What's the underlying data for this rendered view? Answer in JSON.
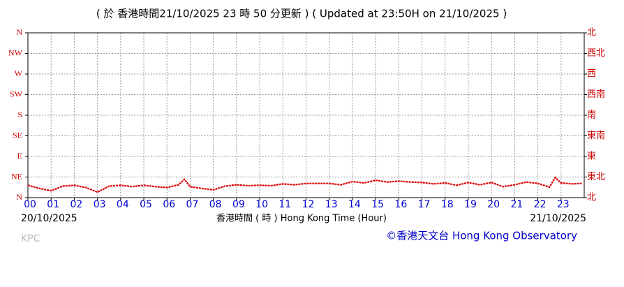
{
  "chart_data": {
    "type": "line",
    "title": "( 於 香港時間21/10/2025 23 時 50 分更新 ) ( Updated at 23:50H on 21/10/2025 )",
    "x_label": "香港時間 ( 時 )  Hong Kong Time (Hour)",
    "start_date": "20/10/2025",
    "end_date": "21/10/2025",
    "station": "KPC",
    "credit": "©香港天文台 Hong Kong Observatory",
    "xlim": [
      0,
      24
    ],
    "xticks": [
      {
        "value": 0,
        "label": "00"
      },
      {
        "value": 1,
        "label": "01"
      },
      {
        "value": 2,
        "label": "02"
      },
      {
        "value": 3,
        "label": "03"
      },
      {
        "value": 4,
        "label": "04"
      },
      {
        "value": 5,
        "label": "05"
      },
      {
        "value": 6,
        "label": "06"
      },
      {
        "value": 7,
        "label": "07"
      },
      {
        "value": 8,
        "label": "08"
      },
      {
        "value": 9,
        "label": "09"
      },
      {
        "value": 10,
        "label": "10"
      },
      {
        "value": 11,
        "label": "11"
      },
      {
        "value": 12,
        "label": "12"
      },
      {
        "value": 13,
        "label": "13"
      },
      {
        "value": 14,
        "label": "14"
      },
      {
        "value": 15,
        "label": "15"
      },
      {
        "value": 16,
        "label": "16"
      },
      {
        "value": 17,
        "label": "17"
      },
      {
        "value": 18,
        "label": "18"
      },
      {
        "value": 19,
        "label": "19"
      },
      {
        "value": 20,
        "label": "20"
      },
      {
        "value": 21,
        "label": "21"
      },
      {
        "value": 22,
        "label": "22"
      },
      {
        "value": 23,
        "label": "23"
      }
    ],
    "ylim": [
      0,
      360
    ],
    "yticks": [
      {
        "value": 0,
        "label": "N"
      },
      {
        "value": 45,
        "label": "NE"
      },
      {
        "value": 90,
        "label": "E"
      },
      {
        "value": 135,
        "label": "SE"
      },
      {
        "value": 180,
        "label": "S"
      },
      {
        "value": 225,
        "label": "SW"
      },
      {
        "value": 270,
        "label": "W"
      },
      {
        "value": 315,
        "label": "NW"
      },
      {
        "value": 360,
        "label": "N"
      }
    ],
    "y2lim": [
      0,
      360
    ],
    "y2ticks": [
      {
        "value": 0,
        "label": "北"
      },
      {
        "value": 45,
        "label": "東北"
      },
      {
        "value": 90,
        "label": "東"
      },
      {
        "value": 135,
        "label": "東南"
      },
      {
        "value": 180,
        "label": "南"
      },
      {
        "value": 225,
        "label": "西南"
      },
      {
        "value": 270,
        "label": "西"
      },
      {
        "value": 315,
        "label": "西北"
      },
      {
        "value": 360,
        "label": "北"
      }
    ],
    "grid": true,
    "tick_color": "#cc0000",
    "hour_color": "#0000cc",
    "series": [
      {
        "color": "#dd0000",
        "x": [
          0,
          0.5,
          1,
          1.5,
          2,
          2.5,
          3,
          3.5,
          4,
          4.5,
          5,
          5.5,
          6,
          6.5,
          6.75,
          7,
          7.5,
          8,
          8.5,
          9,
          9.5,
          10,
          10.5,
          11,
          11.5,
          12,
          12.5,
          13,
          13.5,
          14,
          14.5,
          15,
          15.5,
          16,
          16.5,
          17,
          17.5,
          18,
          18.5,
          19,
          19.5,
          20,
          20.5,
          21,
          21.5,
          22,
          22.5,
          22.75,
          23,
          23.5,
          23.9
        ],
        "values": [
          27,
          20,
          15,
          25,
          27,
          22,
          12,
          25,
          27,
          24,
          27,
          24,
          22,
          28,
          40,
          24,
          20,
          17,
          25,
          28,
          26,
          27,
          26,
          30,
          28,
          31,
          31,
          31,
          28,
          35,
          32,
          38,
          34,
          36,
          34,
          33,
          30,
          32,
          27,
          33,
          28,
          33,
          24,
          28,
          34,
          31,
          23,
          44,
          32,
          30,
          31
        ]
      }
    ]
  }
}
